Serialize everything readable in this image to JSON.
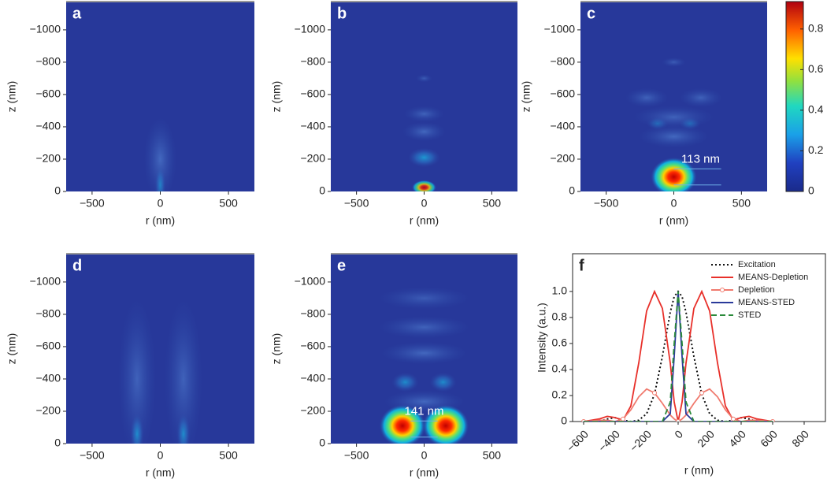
{
  "chart_data": [
    {
      "type": "heatmap",
      "label": "a",
      "xlabel": "r (nm)",
      "ylabel": "z (nm)",
      "xlim": [
        -690,
        690
      ],
      "ylim": [
        0,
        -1175
      ],
      "xticks": [
        {
          "value": -500,
          "label": "−500"
        },
        0,
        500
      ],
      "yticks": [
        0,
        {
          "value": -200,
          "label": "−200"
        },
        {
          "value": -400,
          "label": "−400"
        },
        {
          "value": -600,
          "label": "−600"
        },
        {
          "value": -800,
          "label": "−800"
        },
        {
          "value": -1000,
          "label": "−1000"
        }
      ]
    },
    {
      "type": "heatmap",
      "label": "b",
      "xlabel": "r (nm)",
      "ylabel": "z (nm)",
      "xlim": [
        -690,
        690
      ],
      "ylim": [
        0,
        -1175
      ],
      "xticks": [
        {
          "value": -500,
          "label": "−500"
        },
        0,
        500
      ],
      "yticks": [
        0,
        {
          "value": -200,
          "label": "−200"
        },
        {
          "value": -400,
          "label": "−400"
        },
        {
          "value": -600,
          "label": "−600"
        },
        {
          "value": -800,
          "label": "−800"
        },
        {
          "value": -1000,
          "label": "−1000"
        }
      ]
    },
    {
      "type": "heatmap",
      "label": "c",
      "xlabel": "r (nm)",
      "ylabel": "z (nm)",
      "xlim": [
        -690,
        690
      ],
      "ylim": [
        0,
        -1175
      ],
      "xticks": [
        {
          "value": -500,
          "label": "−500"
        },
        0,
        500
      ],
      "yticks": [
        0,
        {
          "value": -200,
          "label": "−200"
        },
        {
          "value": -400,
          "label": "−400"
        },
        {
          "value": -600,
          "label": "−600"
        },
        {
          "value": -800,
          "label": "−800"
        },
        {
          "value": -1000,
          "label": "−1000"
        }
      ],
      "annotation": "113 nm",
      "colorbar": {
        "lim": [
          0,
          0.935
        ],
        "ticks": [
          0,
          0.2,
          0.4,
          0.6,
          0.8
        ]
      }
    },
    {
      "type": "heatmap",
      "label": "d",
      "xlabel": "r (nm)",
      "ylabel": "z (nm)",
      "xlim": [
        -690,
        690
      ],
      "ylim": [
        0,
        -1175
      ],
      "xticks": [
        {
          "value": -500,
          "label": "−500"
        },
        0,
        500
      ],
      "yticks": [
        0,
        {
          "value": -200,
          "label": "−200"
        },
        {
          "value": -400,
          "label": "−400"
        },
        {
          "value": -600,
          "label": "−600"
        },
        {
          "value": -800,
          "label": "−800"
        },
        {
          "value": -1000,
          "label": "−1000"
        }
      ]
    },
    {
      "type": "heatmap",
      "label": "e",
      "xlabel": "r (nm)",
      "ylabel": "z (nm)",
      "xlim": [
        -690,
        690
      ],
      "ylim": [
        0,
        -1175
      ],
      "xticks": [
        {
          "value": -500,
          "label": "−500"
        },
        0,
        500
      ],
      "yticks": [
        0,
        {
          "value": -200,
          "label": "−200"
        },
        {
          "value": -400,
          "label": "−400"
        },
        {
          "value": -600,
          "label": "−600"
        },
        {
          "value": -800,
          "label": "−800"
        },
        {
          "value": -1000,
          "label": "−1000"
        }
      ],
      "annotation": "141 nm"
    },
    {
      "type": "line",
      "label": "f",
      "xlabel": "r (nm)",
      "ylabel": "Intensity (a.u.)",
      "xlim": [
        -670,
        935
      ],
      "ylim": [
        0,
        1.29
      ],
      "xticks": [
        {
          "value": -600,
          "label": "−600"
        },
        {
          "value": -400,
          "label": "−400"
        },
        {
          "value": -200,
          "label": "−200"
        },
        0,
        200,
        400,
        600,
        800
      ],
      "yticks": [
        0,
        0.2,
        0.4,
        0.6,
        0.8,
        {
          "value": 1,
          "label": "1.0"
        }
      ],
      "x": [
        -600,
        -500,
        -450,
        -400,
        -350,
        -300,
        -250,
        -200,
        -150,
        -100,
        -50,
        -25,
        0,
        25,
        50,
        100,
        150,
        200,
        250,
        300,
        350,
        400,
        450,
        500,
        600
      ],
      "series": [
        {
          "name": "Excitation",
          "color": "#111111",
          "style": "dotted",
          "values": [
            0,
            0,
            0.02,
            0.03,
            0.01,
            0,
            0.01,
            0.06,
            0.21,
            0.5,
            0.84,
            0.96,
            1.0,
            0.96,
            0.84,
            0.5,
            0.21,
            0.06,
            0.01,
            0,
            0.01,
            0.03,
            0.02,
            0,
            0
          ]
        },
        {
          "name": "MEANS-Depletion",
          "color": "#e8302a",
          "style": "solid",
          "values": [
            0,
            0.02,
            0.04,
            0.03,
            0.01,
            0.12,
            0.45,
            0.85,
            1.0,
            0.87,
            0.45,
            0.15,
            0,
            0.15,
            0.45,
            0.87,
            1.0,
            0.85,
            0.45,
            0.12,
            0.01,
            0.03,
            0.04,
            0.02,
            0
          ]
        },
        {
          "name": "Depletion",
          "color": "#f07a6e",
          "style": "circle",
          "values": [
            0,
            0.01,
            0.01,
            0,
            0.02,
            0.09,
            0.19,
            0.25,
            0.22,
            0.14,
            0.05,
            0.02,
            0,
            0.02,
            0.05,
            0.14,
            0.22,
            0.25,
            0.19,
            0.09,
            0.02,
            0,
            0.01,
            0.01,
            0
          ]
        },
        {
          "name": "MEANS-STED",
          "color": "#2a3a9a",
          "style": "solid",
          "values": [
            0,
            0,
            0,
            0,
            0,
            0,
            0,
            0,
            0,
            0,
            0.06,
            0.5,
            1.0,
            0.5,
            0.06,
            0,
            0,
            0,
            0,
            0,
            0,
            0,
            0,
            0,
            0
          ]
        },
        {
          "name": "STED",
          "color": "#2a8a3a",
          "style": "dashed",
          "values": [
            0,
            0,
            0,
            0,
            0,
            0,
            0,
            0,
            0,
            0,
            0.15,
            0.6,
            1.0,
            0.6,
            0.15,
            0,
            0,
            0,
            0,
            0,
            0,
            0,
            0,
            0,
            0
          ]
        }
      ]
    }
  ]
}
